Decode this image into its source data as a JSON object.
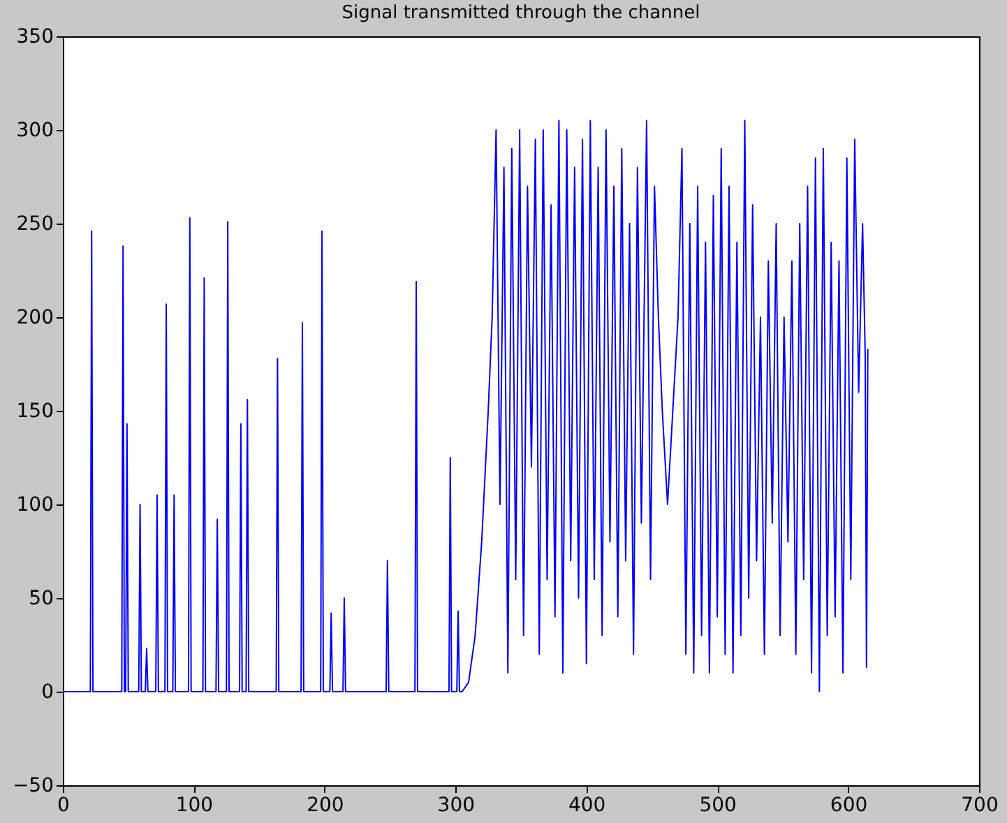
{
  "chart_data": {
    "type": "line",
    "title": "Signal transmitted through the channel",
    "xlim": [
      0,
      700
    ],
    "xticks": [
      0,
      100,
      200,
      300,
      400,
      500,
      600,
      700
    ],
    "ylim": [
      -50,
      350
    ],
    "yticks": [
      -50,
      0,
      50,
      100,
      150,
      200,
      250,
      300,
      350
    ],
    "grid": false,
    "marker": "none",
    "line_style": "solid",
    "series": [
      {
        "color": "#0000ff",
        "x": [
          0,
          21,
          22,
          23,
          45,
          46,
          47,
          48,
          49,
          50,
          58,
          59,
          60,
          63,
          64,
          65,
          71,
          72,
          73,
          78,
          79,
          80,
          84,
          85,
          86,
          96,
          97,
          98,
          107,
          108,
          109,
          117,
          118,
          119,
          125,
          126,
          127,
          135,
          136,
          137,
          140,
          141,
          142,
          163,
          164,
          165,
          182,
          183,
          184,
          197,
          198,
          199,
          204,
          205,
          206,
          214,
          215,
          216,
          247,
          248,
          249,
          269,
          270,
          271,
          295,
          296,
          297,
          301,
          302,
          303,
          305,
          310,
          315,
          320,
          325,
          328,
          331,
          334,
          337,
          340,
          343,
          346,
          349,
          352,
          355,
          358,
          361,
          364,
          367,
          370,
          373,
          376,
          379,
          382,
          385,
          388,
          391,
          394,
          397,
          400,
          403,
          406,
          409,
          412,
          415,
          418,
          421,
          424,
          427,
          430,
          433,
          436,
          439,
          442,
          446,
          449,
          452,
          455,
          458,
          462,
          466,
          470,
          473,
          476,
          479,
          482,
          485,
          488,
          491,
          494,
          497,
          500,
          503,
          506,
          509,
          512,
          515,
          518,
          521,
          524,
          527,
          530,
          533,
          536,
          539,
          542,
          545,
          548,
          551,
          554,
          557,
          560,
          563,
          566,
          569,
          572,
          575,
          578,
          581,
          584,
          587,
          590,
          593,
          596,
          599,
          602,
          605,
          608,
          611,
          613,
          614,
          615
        ],
        "values": [
          0,
          0,
          246,
          0,
          0,
          238,
          0,
          0,
          143,
          0,
          0,
          100,
          0,
          0,
          23,
          0,
          0,
          105,
          0,
          0,
          207,
          0,
          0,
          105,
          0,
          0,
          253,
          0,
          0,
          221,
          0,
          0,
          92,
          0,
          0,
          251,
          0,
          0,
          143,
          0,
          0,
          156,
          0,
          0,
          178,
          0,
          0,
          197,
          0,
          0,
          246,
          0,
          0,
          42,
          0,
          0,
          50,
          0,
          0,
          70,
          0,
          0,
          219,
          0,
          0,
          125,
          0,
          0,
          43,
          0,
          0,
          5,
          30,
          80,
          150,
          200,
          300,
          100,
          280,
          10,
          290,
          60,
          300,
          30,
          270,
          120,
          295,
          20,
          300,
          60,
          260,
          40,
          305,
          10,
          300,
          70,
          280,
          50,
          295,
          15,
          305,
          60,
          280,
          30,
          300,
          80,
          270,
          40,
          290,
          70,
          250,
          20,
          280,
          90,
          305,
          60,
          270,
          200,
          150,
          100,
          150,
          200,
          290,
          20,
          250,
          10,
          270,
          30,
          240,
          10,
          265,
          40,
          290,
          20,
          270,
          10,
          240,
          30,
          305,
          50,
          260,
          70,
          200,
          20,
          230,
          90,
          250,
          30,
          200,
          80,
          230,
          20,
          250,
          60,
          270,
          10,
          285,
          0,
          290,
          30,
          240,
          40,
          230,
          10,
          285,
          60,
          295,
          160,
          250,
          180,
          13,
          183
        ]
      }
    ]
  }
}
